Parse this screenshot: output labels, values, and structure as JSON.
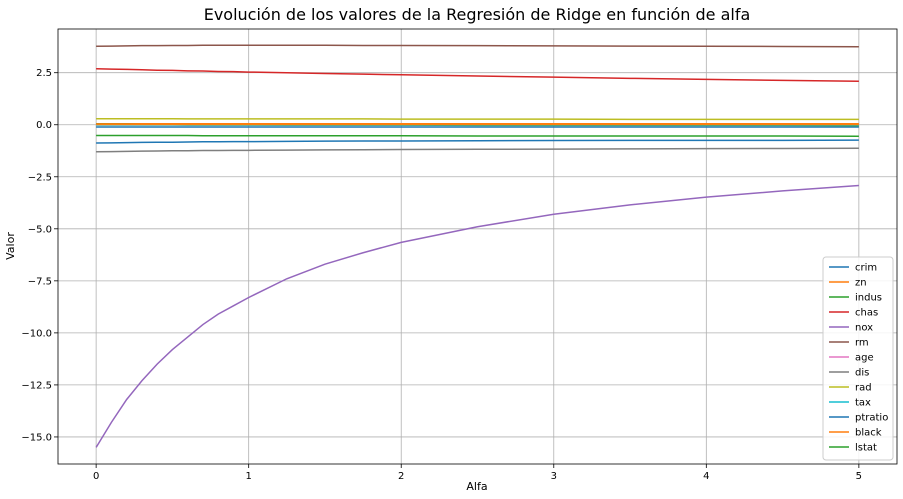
{
  "chart_data": {
    "type": "line",
    "title": "Evolución de los valores de la Regresión de Ridge en función de alfa",
    "xlabel": "Alfa",
    "ylabel": "Valor",
    "xlim": [
      -0.25,
      5.25
    ],
    "ylim": [
      -16.3,
      4.6
    ],
    "xticks": [
      0,
      1,
      2,
      3,
      4,
      5
    ],
    "xtick_labels": [
      "0",
      "1",
      "2",
      "3",
      "4",
      "5"
    ],
    "yticks": [
      2.5,
      0.0,
      -2.5,
      -5.0,
      -7.5,
      -10.0,
      -12.5,
      -15.0
    ],
    "ytick_labels": [
      "2.5",
      "0.0",
      "−2.5",
      "−5.0",
      "−7.5",
      "−10.0",
      "−12.5",
      "−15.0"
    ],
    "grid": true,
    "legend_position": "bottom-right",
    "x": [
      0,
      0.1,
      0.2,
      0.3,
      0.4,
      0.5,
      0.6,
      0.7,
      0.8,
      0.9,
      1.0,
      1.25,
      1.5,
      1.75,
      2.0,
      2.5,
      3.0,
      3.5,
      4.0,
      4.5,
      5.0
    ],
    "series": [
      {
        "name": "crim",
        "color": "#1f77b4",
        "values": [
          -0.11,
          -0.11,
          -0.11,
          -0.11,
          -0.11,
          -0.11,
          -0.11,
          -0.11,
          -0.11,
          -0.11,
          -0.11,
          -0.11,
          -0.11,
          -0.11,
          -0.11,
          -0.11,
          -0.11,
          -0.11,
          -0.11,
          -0.11,
          -0.11
        ]
      },
      {
        "name": "zn",
        "color": "#ff7f0e",
        "values": [
          0.05,
          0.05,
          0.05,
          0.05,
          0.05,
          0.05,
          0.05,
          0.05,
          0.05,
          0.05,
          0.05,
          0.05,
          0.05,
          0.05,
          0.05,
          0.05,
          0.05,
          0.05,
          0.05,
          0.05,
          0.05
        ]
      },
      {
        "name": "indus",
        "color": "#2ca02c",
        "values": [
          0.02,
          0.01,
          0.01,
          0.0,
          0.0,
          -0.0,
          -0.01,
          -0.01,
          -0.01,
          -0.01,
          -0.01,
          -0.02,
          -0.02,
          -0.02,
          -0.02,
          -0.03,
          -0.03,
          -0.03,
          -0.03,
          -0.03,
          -0.04
        ]
      },
      {
        "name": "chas",
        "color": "#d62728",
        "values": [
          2.69,
          2.67,
          2.66,
          2.64,
          2.62,
          2.61,
          2.59,
          2.58,
          2.56,
          2.55,
          2.53,
          2.5,
          2.46,
          2.43,
          2.4,
          2.34,
          2.29,
          2.23,
          2.18,
          2.13,
          2.09
        ]
      },
      {
        "name": "nox",
        "color": "#9467bd",
        "values": [
          -15.5,
          -14.3,
          -13.2,
          -12.3,
          -11.5,
          -10.8,
          -10.2,
          -9.6,
          -9.1,
          -8.7,
          -8.3,
          -7.4,
          -6.7,
          -6.15,
          -5.65,
          -4.9,
          -4.3,
          -3.85,
          -3.48,
          -3.18,
          -2.92
        ]
      },
      {
        "name": "rm",
        "color": "#8c564b",
        "values": [
          3.77,
          3.78,
          3.79,
          3.8,
          3.8,
          3.81,
          3.81,
          3.82,
          3.82,
          3.82,
          3.82,
          3.82,
          3.82,
          3.81,
          3.81,
          3.8,
          3.79,
          3.78,
          3.77,
          3.76,
          3.75
        ]
      },
      {
        "name": "age",
        "color": "#e377c2",
        "values": [
          0.0,
          0.0,
          0.0,
          0.0,
          0.0,
          0.0,
          0.0,
          0.0,
          0.0,
          0.0,
          0.0,
          0.0,
          0.0,
          0.0,
          0.0,
          0.0,
          0.0,
          0.0,
          0.0,
          0.0,
          0.0
        ]
      },
      {
        "name": "dis",
        "color": "#7f7f7f",
        "values": [
          -1.3,
          -1.29,
          -1.28,
          -1.27,
          -1.26,
          -1.25,
          -1.25,
          -1.24,
          -1.24,
          -1.23,
          -1.23,
          -1.22,
          -1.21,
          -1.2,
          -1.19,
          -1.18,
          -1.17,
          -1.16,
          -1.15,
          -1.14,
          -1.13
        ]
      },
      {
        "name": "rad",
        "color": "#bcbd22",
        "values": [
          0.29,
          0.29,
          0.29,
          0.29,
          0.29,
          0.29,
          0.28,
          0.28,
          0.28,
          0.28,
          0.28,
          0.28,
          0.28,
          0.28,
          0.27,
          0.27,
          0.27,
          0.26,
          0.26,
          0.26,
          0.26
        ]
      },
      {
        "name": "tax",
        "color": "#17becf",
        "values": [
          -0.01,
          -0.01,
          -0.01,
          -0.01,
          -0.01,
          -0.01,
          -0.01,
          -0.01,
          -0.01,
          -0.01,
          -0.01,
          -0.01,
          -0.01,
          -0.01,
          -0.01,
          -0.01,
          -0.01,
          -0.01,
          -0.01,
          -0.01,
          -0.01
        ]
      },
      {
        "name": "ptratio",
        "color": "#1f77b4",
        "values": [
          -0.88,
          -0.87,
          -0.86,
          -0.85,
          -0.84,
          -0.84,
          -0.83,
          -0.82,
          -0.82,
          -0.81,
          -0.81,
          -0.8,
          -0.79,
          -0.78,
          -0.78,
          -0.77,
          -0.76,
          -0.75,
          -0.75,
          -0.75,
          -0.74
        ]
      },
      {
        "name": "black",
        "color": "#ff7f0e",
        "values": [
          0.01,
          0.01,
          0.01,
          0.01,
          0.01,
          0.01,
          0.01,
          0.01,
          0.01,
          0.01,
          0.01,
          0.01,
          0.01,
          0.01,
          0.01,
          0.01,
          0.01,
          0.01,
          0.01,
          0.01,
          0.01
        ]
      },
      {
        "name": "lstat",
        "color": "#2ca02c",
        "values": [
          -0.52,
          -0.52,
          -0.52,
          -0.52,
          -0.52,
          -0.52,
          -0.52,
          -0.53,
          -0.53,
          -0.53,
          -0.53,
          -0.53,
          -0.53,
          -0.53,
          -0.53,
          -0.54,
          -0.54,
          -0.54,
          -0.54,
          -0.54,
          -0.55
        ]
      }
    ]
  }
}
